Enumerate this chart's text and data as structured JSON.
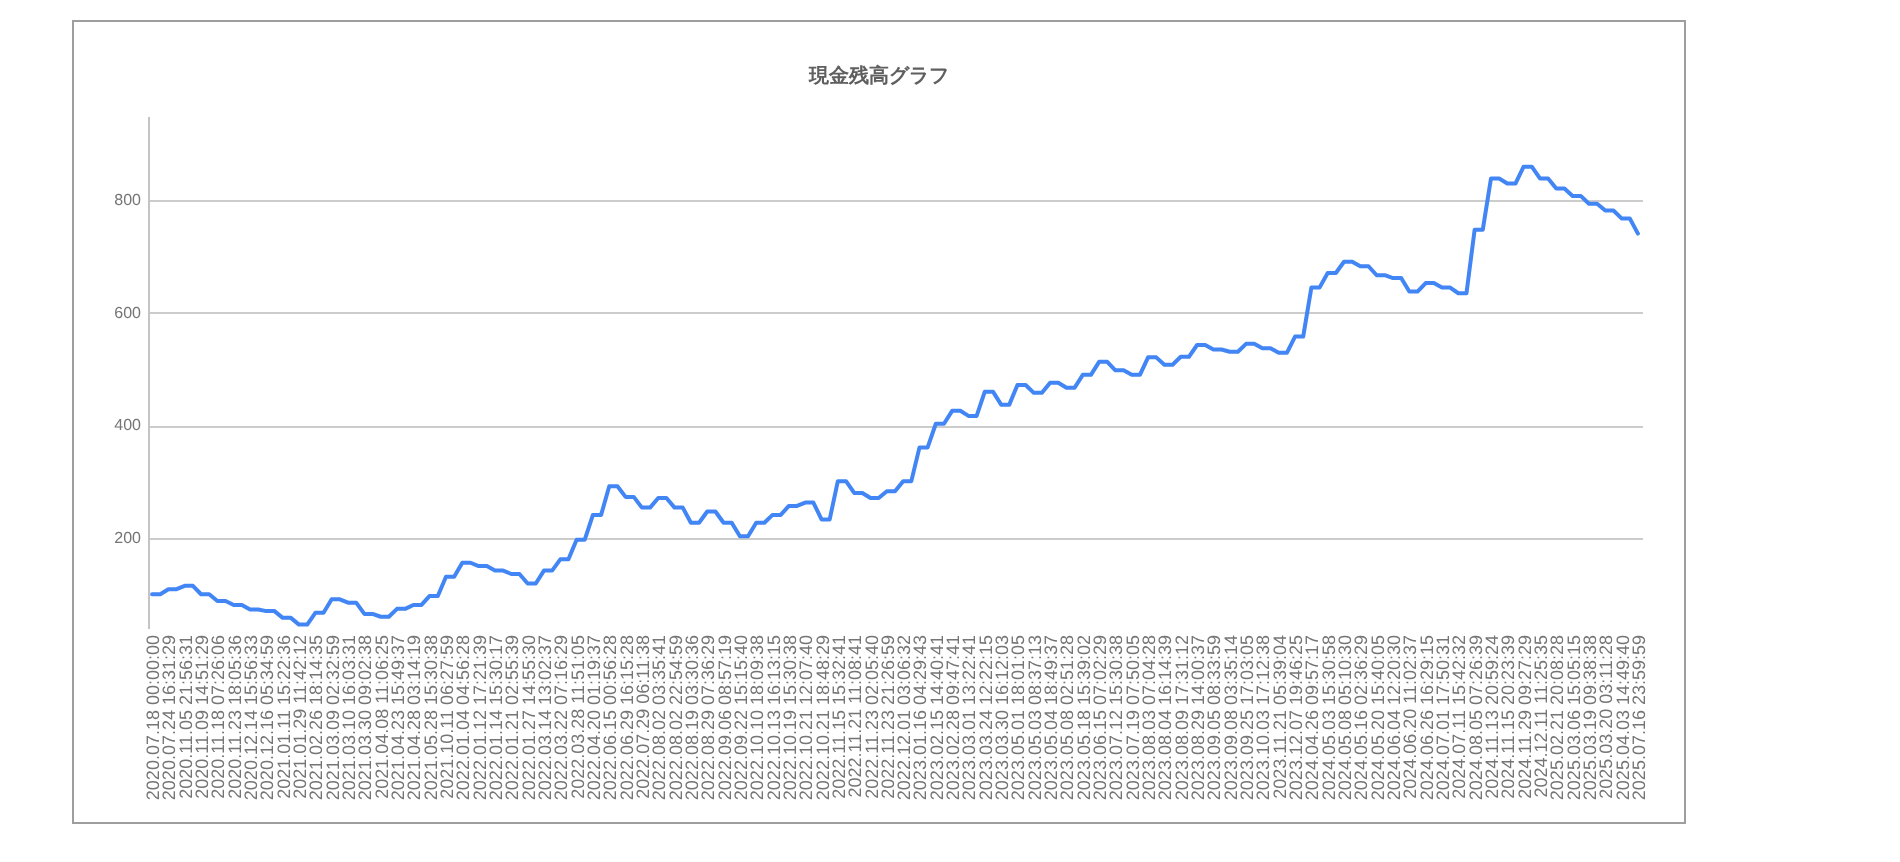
{
  "chart_data": {
    "type": "line",
    "title": "現金残高グラフ",
    "categories": [
      "2020.07.18 00:00:00",
      null,
      "2020.07.24 16:31:29",
      null,
      "2020.11.05 21:56:31",
      null,
      "2020.11.09 14:51:29",
      null,
      "2020.11.18 07:26:06",
      null,
      "2020.11.23 18:05:36",
      null,
      "2020.12.14 15:56:33",
      null,
      "2020.12.16 05:34:59",
      null,
      "2021.01.11 15:22:36",
      null,
      "2021.01.29 11:42:12",
      null,
      "2021.02.26 18:14:35",
      null,
      "2021.03.09 02:32:59",
      null,
      "2021.03.10 16:03:31",
      null,
      "2021.03.30 09:02:38",
      null,
      "2021.04.08 11:06:25",
      null,
      "2021.04.23 15:49:37",
      null,
      "2021.04.28 03:14:19",
      null,
      "2021.05.28 15:30:38",
      null,
      "2021.10.11 06:27:59",
      null,
      "2022.01.04 04:56:28",
      null,
      "2022.01.12 17:21:39",
      null,
      "2022.01.14 15:30:17",
      null,
      "2022.01.21 02:55:39",
      null,
      "2022.01.27 14:55:30",
      null,
      "2022.03.14 13:02:37",
      null,
      "2022.03.22 07:16:29",
      null,
      "2022.03.28 11:51:05",
      null,
      "2022.04.20 01:19:37",
      null,
      "2022.06.15 00:56:28",
      null,
      "2022.06.29 16:15:28",
      null,
      "2022.07.29 06:11:38",
      null,
      "2022.08.02 03:35:41",
      null,
      "2022.08.02 22:54:59",
      null,
      "2022.08.19 03:30:36",
      null,
      "2022.08.29 07:36:29",
      null,
      "2022.09.06 08:57:19",
      null,
      "2022.09.22 15:15:40",
      null,
      "2022.10.10 18:09:38",
      null,
      "2022.10.13 16:13:15",
      null,
      "2022.10.19 15:30:38",
      null,
      "2022.10.21 12:07:40",
      null,
      "2022.10.21 18:48:29",
      null,
      "2022.11.15 15:32:41",
      null,
      "2022.11.21 11:08:41",
      null,
      "2022.11.23 02:05:40",
      null,
      "2022.11.23 21:26:59",
      null,
      "2022.12.01 03:06:32",
      null,
      "2023.01.16 04:29:43",
      null,
      "2023.02.15 14:40:41",
      null,
      "2023.02.28 09:47:41",
      null,
      "2023.03.01 13:22:41",
      null,
      "2023.03.24 12:22:15",
      null,
      "2023.03.30 16:12:03",
      null,
      "2023.05.01 18:01:05",
      null,
      "2023.05.03 08:37:13",
      null,
      "2023.05.04 18:49:37",
      null,
      "2023.05.08 02:51:28",
      null,
      "2023.05.18 15:39:02",
      null,
      "2023.06.15 07:02:29",
      null,
      "2023.07.12 15:30:38",
      null,
      "2023.07.19 07:50:05",
      null,
      "2023.08.03 07:04:28",
      null,
      "2023.08.04 16:14:39",
      null,
      "2023.08.09 17:31:12",
      null,
      "2023.08.29 14:00:37",
      null,
      "2023.09.05 08:33:59",
      null,
      "2023.09.08 03:35:14",
      null,
      "2023.09.25 17:03:05",
      null,
      "2023.10.03 17:12:38",
      null,
      "2023.11.21 05:39:04",
      null,
      "2023.12.07 19:46:25",
      null,
      "2024.04.26 09:57:17",
      null,
      "2024.05.03 15:30:58",
      null,
      "2024.05.08 05:10:30",
      null,
      "2024.05.16 02:36:29",
      null,
      "2024.05.20 15:40:05",
      null,
      "2024.06.04 12:20:30",
      null,
      "2024.06.20 11:02:37",
      null,
      "2024.06.26 16:29:15",
      null,
      "2024.07.01 17:50:31",
      null,
      "2024.07.11 15:42:32",
      null,
      "2024.08.05 07:26:39",
      null,
      "2024.11.13 20:59:24",
      null,
      "2024.11.15 20:23:39",
      null,
      "2024.11.29 09:27:29",
      null,
      "2024.12.11 11:25:35",
      null,
      "2025.02.21 20:08:28",
      null,
      "2025.03.06 15:05:15",
      null,
      "2025.03.19 09:38:38",
      null,
      "2025.03.20 03:11:28",
      null,
      "2025.04.03 14:49:40",
      null,
      "2025.07.16 23:59:59"
    ],
    "series": [
      {
        "color": "#4285f4",
        "values": [
          100,
          100,
          109,
          109,
          115,
          115,
          100,
          100,
          88,
          88,
          81,
          81,
          73,
          73,
          70,
          70,
          58,
          58,
          46,
          46,
          67,
          67,
          91,
          91,
          85,
          85,
          65,
          65,
          60,
          60,
          74,
          74,
          81,
          81,
          97,
          97,
          131,
          131,
          156,
          156,
          150,
          150,
          142,
          142,
          136,
          136,
          119,
          119,
          142,
          142,
          162,
          162,
          197,
          197,
          241,
          241,
          292,
          292,
          273,
          273,
          254,
          254,
          271,
          271,
          254,
          254,
          227,
          227,
          247,
          247,
          227,
          227,
          203,
          203,
          227,
          227,
          241,
          241,
          257,
          257,
          263,
          263,
          233,
          233,
          301,
          301,
          280,
          280,
          271,
          271,
          283,
          283,
          301,
          301,
          361,
          361,
          403,
          403,
          426,
          426,
          417,
          417,
          460,
          460,
          437,
          437,
          472,
          472,
          458,
          458,
          476,
          476,
          467,
          467,
          490,
          490,
          513,
          513,
          498,
          498,
          490,
          490,
          521,
          521,
          508,
          508,
          522,
          522,
          543,
          543,
          535,
          535,
          531,
          531,
          545,
          545,
          537,
          537,
          529,
          529,
          558,
          558,
          645,
          645,
          671,
          671,
          691,
          691,
          683,
          683,
          667,
          667,
          662,
          662,
          638,
          638,
          653,
          653,
          645,
          645,
          635,
          635,
          748,
          748,
          839,
          839,
          830,
          830,
          860,
          860,
          839,
          839,
          821,
          821,
          808,
          808,
          794,
          794,
          782,
          782,
          768,
          768,
          741
        ]
      }
    ],
    "ylim": [
      40,
      950
    ],
    "yticks": [
      200,
      400,
      600,
      800
    ],
    "grid": "y"
  }
}
